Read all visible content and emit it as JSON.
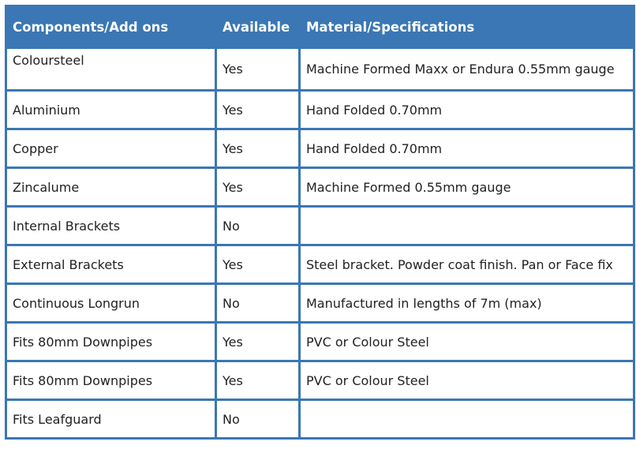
{
  "table": {
    "columns": [
      "Components/Add ons",
      "Available",
      "Material/Specifications"
    ],
    "rows": [
      [
        "Coloursteel",
        "Yes",
        "Machine Formed Maxx or Endura 0.55mm gauge"
      ],
      [
        "Aluminium",
        "Yes",
        "Hand Folded 0.70mm"
      ],
      [
        "Copper",
        "Yes",
        "Hand Folded 0.70mm"
      ],
      [
        "Zincalume",
        "Yes",
        "Machine Formed 0.55mm gauge"
      ],
      [
        "Internal Brackets",
        "No"
      ],
      [
        "External Brackets",
        "Yes",
        "Steel bracket. Powder coat finish. Pan or Face fix"
      ],
      [
        "Continuous Longrun",
        "No",
        "Manufactured in lengths of 7m (max)"
      ],
      [
        "Fits 80mm Downpipes",
        "Yes",
        "PVC or Colour Steel"
      ],
      [
        "Fits 80mm Downpipes",
        "Yes",
        "PVC or Colour Steel"
      ],
      [
        "Fits Leafguard",
        "No"
      ]
    ]
  }
}
